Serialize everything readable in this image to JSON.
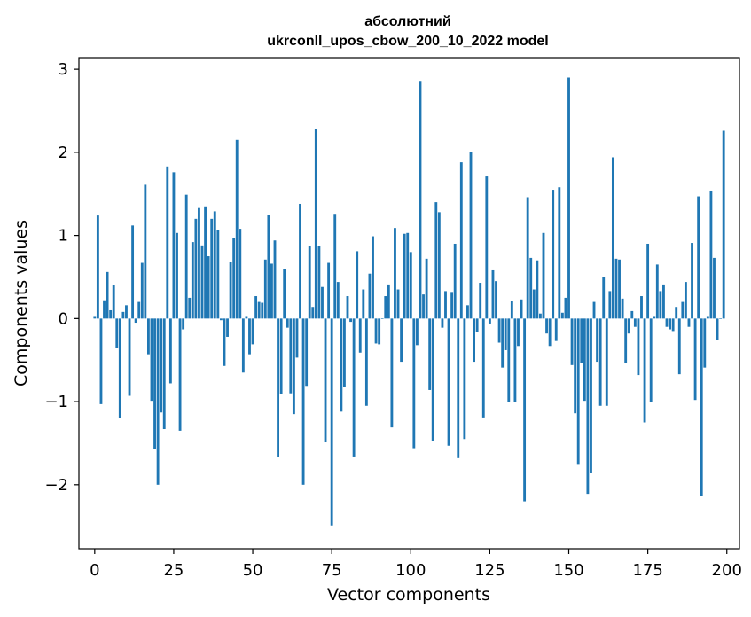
{
  "chart_data": {
    "type": "bar",
    "title_line1": "абсолютний",
    "title_line2": "ukrconll_upos_cbow_200_10_2022 model",
    "xlabel": "Vector components",
    "ylabel": "Components values",
    "xlim": [
      -5,
      204
    ],
    "ylim": [
      -2.77,
      3.14
    ],
    "xticks": [
      0,
      25,
      50,
      75,
      100,
      125,
      150,
      175,
      200
    ],
    "xtick_labels": [
      "0",
      "25",
      "50",
      "75",
      "100",
      "125",
      "150",
      "175",
      "200"
    ],
    "yticks": [
      -2,
      -1,
      0,
      1,
      2,
      3
    ],
    "ytick_labels": [
      "−2",
      "−1",
      "0",
      "1",
      "2",
      "3"
    ],
    "bar_color": "#1f77b4",
    "grid": false,
    "values": [
      0.02,
      1.24,
      -1.03,
      0.22,
      0.56,
      0.1,
      0.4,
      -0.35,
      -1.2,
      0.08,
      0.16,
      -0.93,
      1.12,
      -0.05,
      0.2,
      0.67,
      1.61,
      -0.43,
      -0.99,
      -1.57,
      -2.0,
      -1.13,
      -1.33,
      1.83,
      -0.78,
      1.76,
      1.03,
      -1.35,
      -0.13,
      1.49,
      0.25,
      0.92,
      1.2,
      1.33,
      0.88,
      1.35,
      0.75,
      1.2,
      1.29,
      1.07,
      -0.02,
      -0.57,
      -0.22,
      0.68,
      0.97,
      2.15,
      1.08,
      -0.65,
      0.02,
      -0.43,
      -0.31,
      0.27,
      0.2,
      0.19,
      0.71,
      1.25,
      0.66,
      0.94,
      -1.67,
      -0.91,
      0.6,
      -0.11,
      -0.9,
      -1.15,
      -0.47,
      1.38,
      -2.0,
      -0.81,
      0.87,
      0.14,
      2.28,
      0.87,
      0.38,
      -1.49,
      0.67,
      -2.49,
      1.26,
      0.44,
      -1.12,
      -0.82,
      0.27,
      -0.04,
      -1.66,
      0.81,
      -0.41,
      0.35,
      -1.05,
      0.54,
      0.99,
      -0.3,
      -0.31,
      0.0,
      0.27,
      0.41,
      -1.31,
      1.09,
      0.35,
      -0.52,
      1.02,
      1.03,
      0.8,
      -1.56,
      -0.32,
      2.86,
      0.29,
      0.72,
      -0.86,
      -1.47,
      1.4,
      1.28,
      -0.11,
      0.33,
      -1.53,
      0.32,
      0.9,
      -1.68,
      1.88,
      -1.45,
      0.16,
      2.0,
      -0.52,
      -0.16,
      0.43,
      -1.19,
      1.71,
      -0.06,
      0.58,
      0.45,
      -0.29,
      -0.59,
      -0.38,
      -1.0,
      0.21,
      -1.0,
      -0.33,
      0.23,
      -2.2,
      1.46,
      0.73,
      0.35,
      0.7,
      0.06,
      1.03,
      -0.18,
      -0.33,
      1.55,
      -0.27,
      1.58,
      0.07,
      0.25,
      2.9,
      -0.56,
      -1.14,
      -1.75,
      -0.53,
      -0.99,
      -2.11,
      -1.86,
      0.2,
      -0.52,
      -1.05,
      0.5,
      -1.05,
      0.33,
      1.94,
      0.72,
      0.71,
      0.24,
      -0.53,
      -0.18,
      0.09,
      -0.1,
      -0.68,
      0.27,
      -1.25,
      0.9,
      -1.0,
      0.02,
      0.65,
      0.33,
      0.41,
      -0.1,
      -0.13,
      -0.15,
      0.14,
      -0.67,
      0.2,
      0.44,
      -0.1,
      0.91,
      -0.98,
      1.47,
      -2.13,
      -0.59,
      0.02,
      1.54,
      0.73,
      -0.26,
      0.0,
      2.26
    ]
  }
}
